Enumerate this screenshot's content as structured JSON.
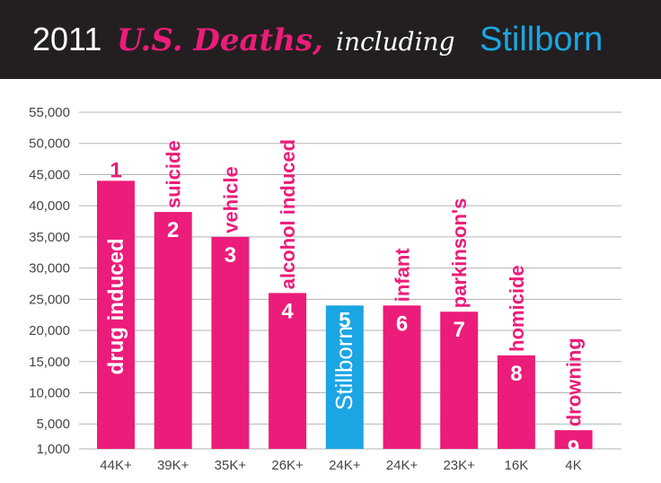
{
  "header": {
    "year": "2011",
    "title_script": "U.S. Deaths,",
    "title_mid": "including",
    "brand": "Stillborn"
  },
  "colors": {
    "primary": "#ec1c7a",
    "highlight": "#1ba6e3",
    "header_bg": "#231f20",
    "grid": "#b3b3b3",
    "tick_text": "#444444"
  },
  "chart_data": {
    "type": "bar",
    "categories": [
      "drug induced",
      "suicide",
      "vehicle",
      "alcohol induced",
      "Stillborn",
      "infant",
      "parkinson's",
      "homicide",
      "drowning"
    ],
    "ranks": [
      "1",
      "2",
      "3",
      "4",
      "5",
      "6",
      "7",
      "8",
      "9"
    ],
    "values": [
      44000,
      39000,
      35000,
      26000,
      24000,
      24000,
      23000,
      16000,
      4000
    ],
    "value_labels": [
      "44K+",
      "39K+",
      "35K+",
      "26K+",
      "24K+",
      "24K+",
      "23K+",
      "16K",
      "4K"
    ],
    "highlight_index": 4,
    "y_ticks": [
      1000,
      5000,
      10000,
      15000,
      20000,
      25000,
      30000,
      35000,
      40000,
      45000,
      50000,
      55000
    ],
    "y_tick_labels": [
      "1,000",
      "5,000",
      "10,000",
      "15,000",
      "20,000",
      "25,000",
      "30,000",
      "35,000",
      "40,000",
      "45,000",
      "50,000",
      "55,000"
    ],
    "ylim": [
      1000,
      55000
    ],
    "grid": true,
    "legend": "none"
  }
}
